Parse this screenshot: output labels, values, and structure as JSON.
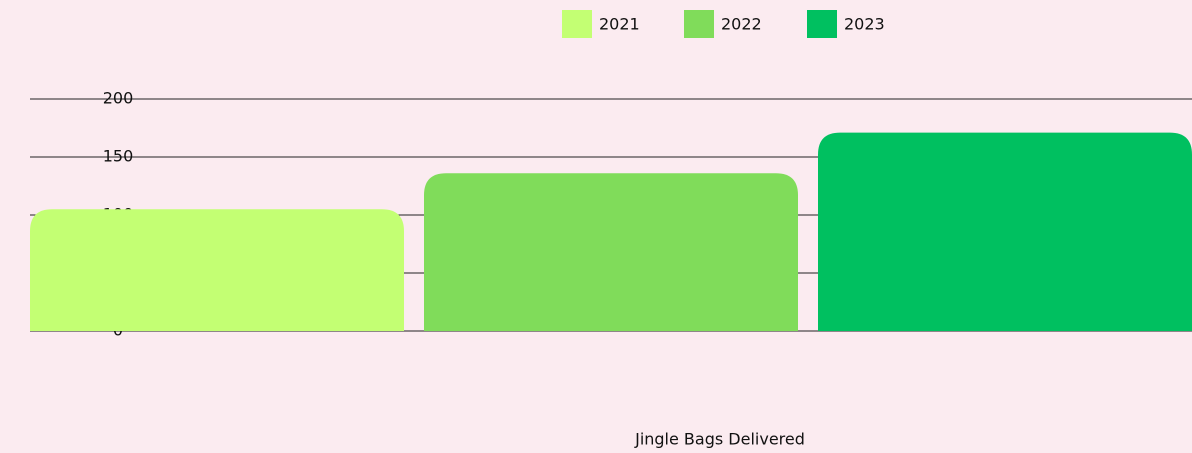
{
  "chart_data": {
    "type": "bar",
    "categories": [
      "Jingle Bags Delivered"
    ],
    "series": [
      {
        "name": "2021",
        "color": "#c3ff73",
        "values": [
          105
        ]
      },
      {
        "name": "2022",
        "color": "#80dc5a",
        "values": [
          136
        ]
      },
      {
        "name": "2023",
        "color": "#00c060",
        "values": [
          171
        ]
      }
    ],
    "ylim": [
      0,
      200
    ],
    "yticks": [
      0,
      50,
      100,
      150,
      200
    ],
    "grid": true,
    "legend": "top"
  }
}
